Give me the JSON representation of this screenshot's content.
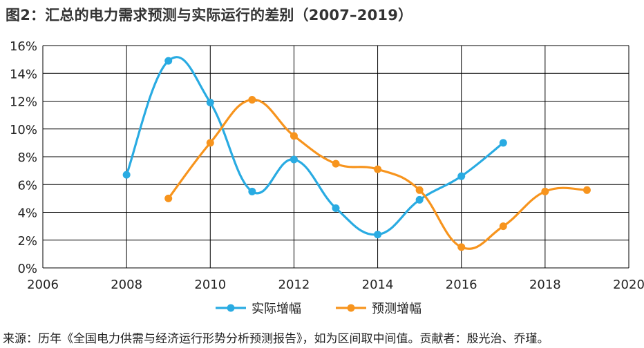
{
  "title": "图2：汇总的电力需求预测与实际运行的差别（2007–2019）",
  "source": "来源：历年《全国电力供需与经济运行形势分析预测报告》，如为区间取中间值。贡献者：殷光治、乔瑾。",
  "colors": {
    "actual": "#29ABE2",
    "forecast": "#F7941D",
    "grid": "#000000",
    "text": "#222222"
  },
  "chart_data": {
    "type": "line",
    "title": "图2：汇总的电力需求预测与实际运行的差别（2007–2019）",
    "xlabel": "",
    "ylabel": "",
    "xlim": [
      2006,
      2020
    ],
    "ylim": [
      0,
      16
    ],
    "x_ticks": [
      "2006",
      "2008",
      "2010",
      "2012",
      "2014",
      "2016",
      "2018",
      "2020"
    ],
    "y_ticks": [
      "0%",
      "2%",
      "4%",
      "6%",
      "8%",
      "10%",
      "12%",
      "14%",
      "16%"
    ],
    "grid": true,
    "smooth": true,
    "legend_position": "bottom-center",
    "series": [
      {
        "name": "实际增幅",
        "color": "#29ABE2",
        "x": [
          2008,
          2009,
          2010,
          2011,
          2012,
          2013,
          2014,
          2015,
          2016,
          2017
        ],
        "values": [
          6.7,
          14.9,
          11.9,
          5.5,
          7.8,
          4.3,
          2.4,
          4.9,
          6.6,
          9.0
        ]
      },
      {
        "name": "预测增幅",
        "color": "#F7941D",
        "x": [
          2009,
          2010,
          2011,
          2012,
          2013,
          2014,
          2015,
          2016,
          2017,
          2018,
          2019
        ],
        "values": [
          5.0,
          9.0,
          12.1,
          9.5,
          7.5,
          7.1,
          5.6,
          1.5,
          3.0,
          5.5,
          5.6
        ]
      }
    ]
  }
}
